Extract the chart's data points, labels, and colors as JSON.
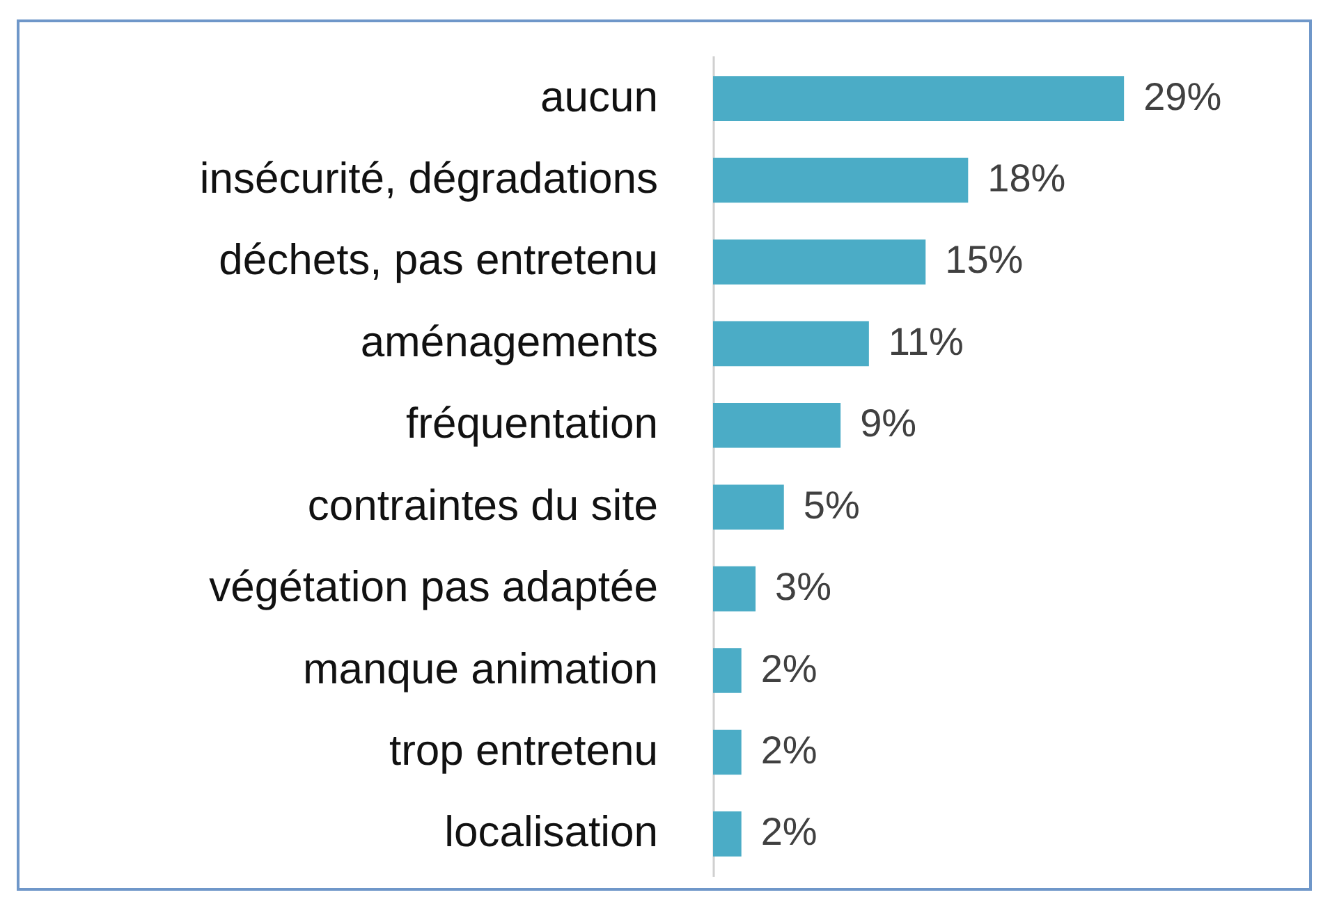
{
  "chart_data": {
    "type": "bar",
    "orientation": "horizontal",
    "categories": [
      "aucun",
      "insécurité, dégradations",
      "déchets, pas entretenu",
      "aménagements",
      "fréquentation",
      "contraintes du site",
      "végétation pas adaptée",
      "manque animation",
      "trop entretenu",
      "localisation"
    ],
    "values": [
      29,
      18,
      15,
      11,
      9,
      5,
      3,
      2,
      2,
      2
    ],
    "value_labels": [
      "29%",
      "18%",
      "15%",
      "11%",
      "9%",
      "5%",
      "3%",
      "2%",
      "2%",
      "2%"
    ],
    "color": "#4bacc6"
  }
}
